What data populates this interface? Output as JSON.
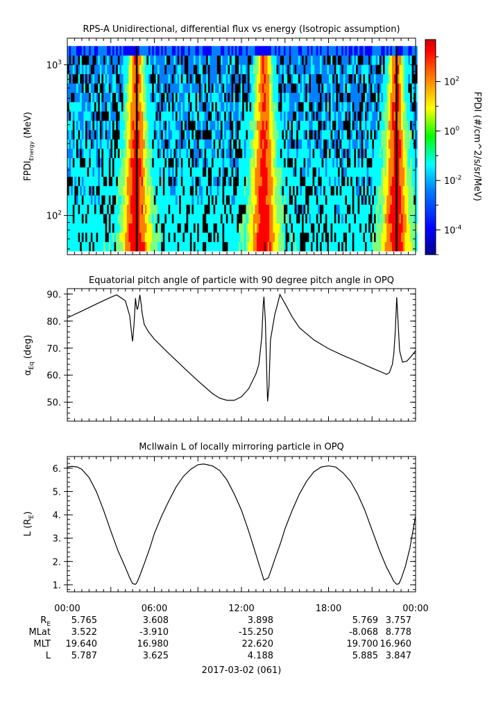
{
  "chart_data": [
    {
      "type": "heatmap",
      "title": "RPS-A Unidirectional, differential flux vs energy (Isotropic assumption)",
      "ylabel": "FPDI",
      "ylabel_sub": "Energy",
      "ylabel_unit": "(MeV)",
      "yscale": "log",
      "ylim": [
        55,
        1500
      ],
      "y_ticks": [
        {
          "value": 100,
          "base": "10",
          "exp": "2"
        },
        {
          "value": 1000,
          "base": "10",
          "exp": "3"
        }
      ],
      "energy_top": 1330,
      "energy_bottom": 58,
      "xlim_hours": [
        0,
        24
      ],
      "colorbar": {
        "label": "FPDI (#/cm^2/s/sr/MeV)",
        "scale": "log",
        "range": [
          1e-05,
          5000
        ],
        "ticks": [
          {
            "value": 0.0001,
            "base": "10",
            "exp": "-4"
          },
          {
            "value": 0.01,
            "base": "10",
            "exp": "-2"
          },
          {
            "value": 1,
            "base": "10",
            "exp": "0"
          },
          {
            "value": 100,
            "base": "10",
            "exp": "2"
          }
        ]
      },
      "flux_peaks_hours": [
        4.75,
        13.55,
        22.65
      ],
      "colors": [
        "#00008f",
        "#0000ff",
        "#007fff",
        "#00ffff",
        "#7fff7f",
        "#ffff00",
        "#ff7f00",
        "#ff0000",
        "#7f0000"
      ]
    },
    {
      "type": "line",
      "title": "Equatorial pitch angle of particle with 90 degree pitch angle in OPQ",
      "ylabel_greek": "α",
      "ylabel_sub": "Eq",
      "ylabel_unit": "(deg)",
      "xlim": [
        0,
        24
      ],
      "ylim": [
        43,
        92
      ],
      "y_ticks": [
        50,
        60,
        70,
        80,
        90
      ],
      "y_tick_labels": [
        "50.",
        "60.",
        "70.",
        "80.",
        "90."
      ],
      "x_hours": [
        0,
        1,
        2,
        3,
        3.4,
        4,
        4.3,
        4.45,
        4.5,
        4.6,
        4.7,
        4.75,
        4.8,
        4.85,
        4.9,
        5.0,
        5.1,
        5.15,
        5.3,
        5.6,
        6,
        7,
        8,
        9,
        10,
        10.5,
        11,
        11.5,
        12,
        12.5,
        13,
        13.2,
        13.4,
        13.5,
        13.55,
        13.65,
        13.75,
        13.8,
        13.9,
        14.0,
        14.3,
        14.5,
        14.65,
        15,
        15.5,
        16,
        17,
        18,
        19,
        20,
        21,
        21.5,
        21.8,
        22.0,
        22.2,
        22.4,
        22.5,
        22.6,
        22.7,
        22.8,
        22.9,
        23.1,
        23.4,
        23.7,
        24
      ],
      "y_deg": [
        81.2,
        83.7,
        86.3,
        88.8,
        89.7,
        87.5,
        82,
        74.5,
        72.5,
        79,
        88.5,
        86,
        84.5,
        84.5,
        86,
        89.7,
        86,
        83.2,
        78.8,
        76,
        73.3,
        68,
        62.9,
        57.9,
        53.2,
        51.5,
        50.7,
        50.7,
        52,
        55,
        60.5,
        64,
        74,
        86,
        89,
        80,
        60,
        50.3,
        56,
        73,
        82.5,
        86.5,
        89.8,
        86.5,
        81.5,
        77.5,
        73,
        69.8,
        67.3,
        65,
        62.6,
        61.5,
        60.8,
        60.3,
        61,
        64,
        68,
        76,
        88.8,
        79,
        69,
        64.8,
        65.2,
        67,
        69
      ]
    },
    {
      "type": "line",
      "title": "McIlwain L of locally mirroring particle in OPQ",
      "ylabel": "L",
      "ylabel_unit_open": "(R",
      "ylabel_unit_sub": "E",
      "ylabel_unit_close": ")",
      "xlim": [
        0,
        24
      ],
      "ylim": [
        0.7,
        6.5
      ],
      "y_ticks": [
        1,
        2,
        3,
        4,
        5,
        6
      ],
      "y_tick_labels": [
        "1.",
        "2.",
        "3.",
        "4.",
        "5.",
        "6."
      ],
      "x_hours": [
        0,
        0.3,
        0.7,
        1,
        1.5,
        2,
        2.5,
        3,
        3.5,
        4,
        4.3,
        4.5,
        4.7,
        4.8,
        5.0,
        5.3,
        5.7,
        6,
        6.5,
        7,
        7.5,
        8,
        8.5,
        9,
        9.4,
        10,
        10.5,
        11,
        11.5,
        12,
        12.5,
        13,
        13.3,
        13.55,
        13.7,
        13.85,
        14.0,
        14.3,
        14.7,
        15,
        15.5,
        16,
        16.5,
        17,
        17.5,
        18,
        18.5,
        19,
        19.5,
        20,
        20.5,
        21,
        21.5,
        22,
        22.3,
        22.5,
        22.7,
        22.85,
        23.0,
        23.3,
        23.6,
        24
      ],
      "y_L": [
        6.05,
        6.08,
        6.05,
        5.95,
        5.6,
        5.0,
        4.2,
        3.3,
        2.45,
        1.75,
        1.3,
        1.05,
        1.02,
        1.1,
        1.4,
        1.9,
        2.6,
        3.2,
        3.95,
        4.6,
        5.2,
        5.65,
        5.95,
        6.15,
        6.18,
        6.1,
        5.9,
        5.5,
        4.9,
        4.2,
        3.3,
        2.3,
        1.7,
        1.2,
        1.25,
        1.3,
        1.55,
        2.1,
        2.8,
        3.4,
        4.2,
        4.9,
        5.45,
        5.85,
        6.05,
        6.1,
        6.05,
        5.8,
        5.45,
        4.9,
        4.2,
        3.35,
        2.5,
        1.75,
        1.4,
        1.15,
        1.02,
        1.05,
        1.25,
        1.8,
        2.55,
        3.95
      ]
    }
  ],
  "x_ticks": [
    {
      "hour": 0,
      "label": "00:00"
    },
    {
      "hour": 6,
      "label": "06:00"
    },
    {
      "hour": 12,
      "label": "12:00"
    },
    {
      "hour": 18,
      "label": "18:00"
    },
    {
      "hour": 24,
      "label": "00:00"
    }
  ],
  "ephemeris": {
    "row_labels": [
      {
        "main": "R",
        "sub": "E"
      },
      {
        "main": "MLat",
        "sub": ""
      },
      {
        "main": "MLT",
        "sub": ""
      },
      {
        "main": "L",
        "sub": ""
      }
    ],
    "rows": [
      [
        "5.765",
        "3.608",
        "3.898",
        "5.769",
        "3.757"
      ],
      [
        "3.522",
        "-3.910",
        "-15.250",
        "-8.068",
        "8.778"
      ],
      [
        "19.640",
        "16.980",
        "22.620",
        "19.700",
        "16.960"
      ],
      [
        "5.787",
        "3.625",
        "4.188",
        "5.885",
        "3.847"
      ]
    ]
  },
  "date_label": "2017-03-02 (061)"
}
